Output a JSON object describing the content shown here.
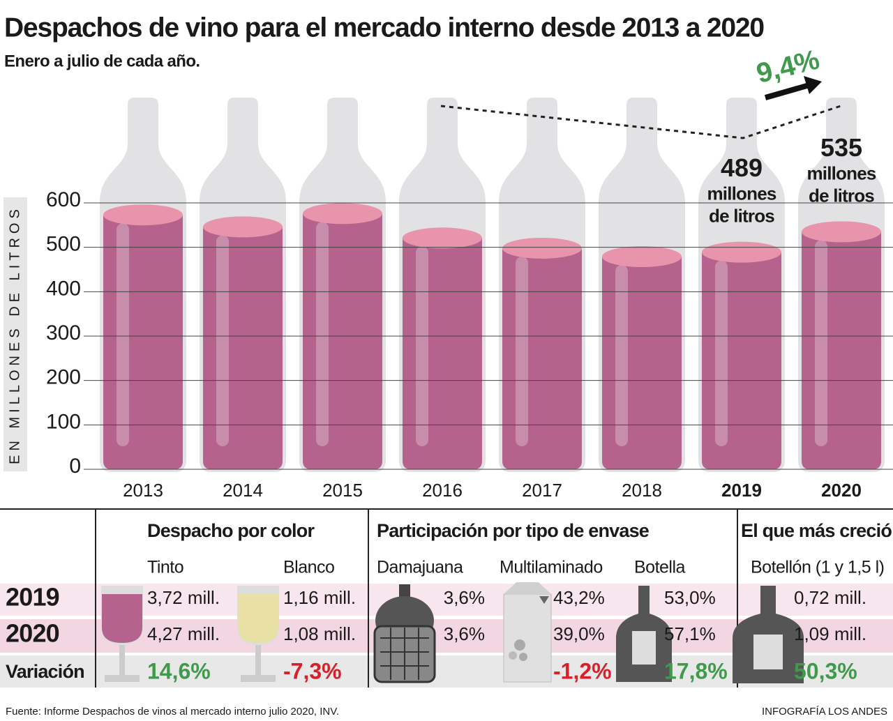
{
  "chart_data": {
    "type": "bar",
    "title": "Despachos de vino para el mercado interno desde 2013 a 2020",
    "subtitle": "Enero a julio de cada año.",
    "y_label": "EN MILLONES DE LITROS",
    "categories": [
      "2013",
      "2014",
      "2015",
      "2016",
      "2017",
      "2018",
      "2019",
      "2020"
    ],
    "values": [
      573,
      546,
      576,
      521,
      498,
      479,
      489,
      535
    ],
    "color": "#b5628d",
    "highlight": [
      6,
      7
    ],
    "unit_label": "millones de litros",
    "annotation": "9,4%",
    "ylim": [
      0,
      600
    ],
    "yticks": [
      0,
      100,
      200,
      300,
      400,
      500,
      600
    ],
    "grid": true
  },
  "table": {
    "groups": [
      "Despacho por color",
      "Participación por tipo de envase",
      "El que más creció"
    ],
    "columns": [
      "Tinto",
      "Blanco",
      "Damajuana",
      "Multilaminado",
      "Botella",
      "Botellón (1 y 1,5 l)"
    ],
    "rows": [
      {
        "label": "2019",
        "cells": [
          "3,72 mill.",
          "1,16 mill.",
          "3,6%",
          "43,2%",
          "53,0%",
          "0,72 mill."
        ]
      },
      {
        "label": "2020",
        "cells": [
          "4,27 mill.",
          "1,08 mill.",
          "3,6%",
          "39,0%",
          "57,1%",
          "1,09 mill."
        ]
      },
      {
        "label": "Variación",
        "cells": [
          "14,6%",
          "-7,3%",
          null,
          "-1,2%",
          "17,8%",
          "50,3%"
        ]
      }
    ]
  },
  "source": "Fuente: Informe Despachos de vinos al mercado interno julio 2020, INV.",
  "credit": "INFOGRAFÍA LOS ANDES"
}
